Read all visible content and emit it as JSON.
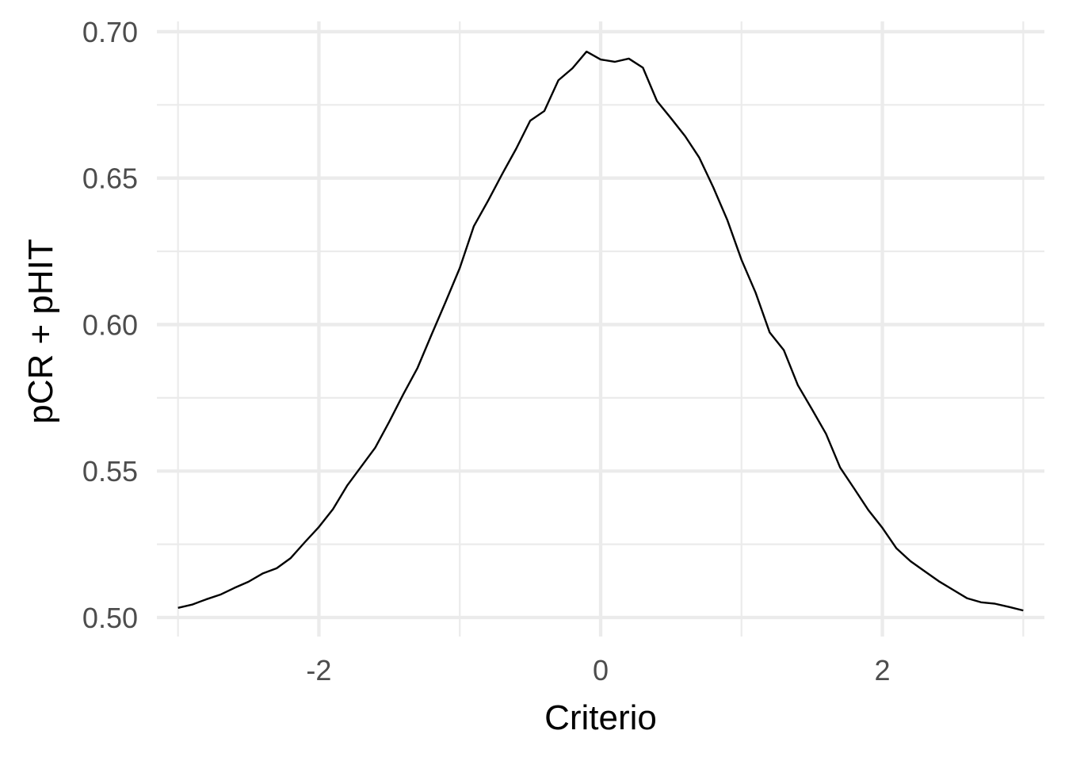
{
  "chart_data": {
    "type": "line",
    "xlabel": "Criterio",
    "ylabel": "pCR + pHIT",
    "xlim": [
      -3.15,
      3.15
    ],
    "ylim": [
      0.4935,
      0.7035
    ],
    "x_ticks": [
      -2,
      0,
      2
    ],
    "x_tick_labels": [
      "-2",
      "0",
      "2"
    ],
    "x_minor_ticks": [
      -3,
      -1,
      1,
      3
    ],
    "y_ticks": [
      0.5,
      0.55,
      0.6,
      0.65,
      0.7
    ],
    "y_tick_labels": [
      "0.50",
      "0.55",
      "0.60",
      "0.65",
      "0.70"
    ],
    "y_minor_ticks": [
      0.525,
      0.575,
      0.625,
      0.675
    ],
    "grid": true,
    "legend": "none",
    "line_color": "#000000",
    "series": [
      {
        "x": [
          -3.0,
          -2.9,
          -2.8,
          -2.7,
          -2.6,
          -2.5,
          -2.4,
          -2.3,
          -2.2,
          -2.1,
          -2.0,
          -1.9,
          -1.8,
          -1.7,
          -1.6,
          -1.5,
          -1.4,
          -1.3,
          -1.2,
          -1.1,
          -1.0,
          -0.9,
          -0.8,
          -0.7,
          -0.6,
          -0.5,
          -0.4,
          -0.3,
          -0.2,
          -0.1,
          0.0,
          0.1,
          0.2,
          0.3,
          0.4,
          0.5,
          0.6,
          0.7,
          0.8,
          0.9,
          1.0,
          1.1,
          1.2,
          1.3,
          1.4,
          1.5,
          1.6,
          1.7,
          1.8,
          1.9,
          2.0,
          2.1,
          2.2,
          2.3,
          2.4,
          2.5,
          2.6,
          2.7,
          2.8,
          2.9,
          3.0
        ],
        "y": [
          0.5033,
          0.5044,
          0.5062,
          0.5078,
          0.5101,
          0.5122,
          0.515,
          0.5168,
          0.5203,
          0.5257,
          0.5309,
          0.537,
          0.545,
          0.5515,
          0.558,
          0.5669,
          0.5763,
          0.5852,
          0.5966,
          0.6078,
          0.6193,
          0.6336,
          0.6422,
          0.6513,
          0.66,
          0.6696,
          0.6729,
          0.6834,
          0.6875,
          0.6932,
          0.6905,
          0.6897,
          0.6908,
          0.6877,
          0.6763,
          0.6704,
          0.6643,
          0.657,
          0.6468,
          0.6356,
          0.6221,
          0.6109,
          0.5973,
          0.5913,
          0.5793,
          0.5711,
          0.5627,
          0.5512,
          0.544,
          0.5367,
          0.5306,
          0.5236,
          0.5192,
          0.5158,
          0.5124,
          0.5095,
          0.5066,
          0.5052,
          0.5047,
          0.5036,
          0.5024
        ]
      }
    ]
  }
}
